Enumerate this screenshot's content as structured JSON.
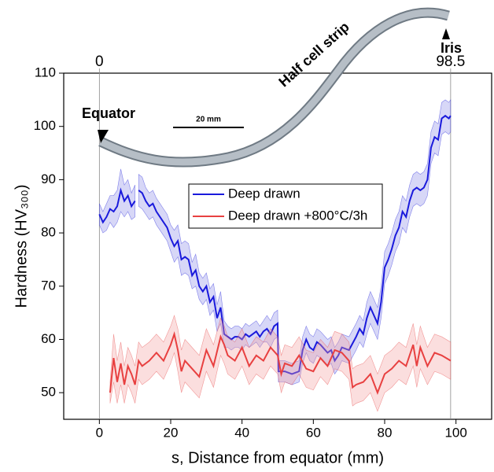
{
  "chart_data": {
    "type": "line",
    "x_label": "s, Distance from equator (mm)",
    "y_label": "Hardness (HV₃₀₀)",
    "xlim": [
      -10,
      110
    ],
    "xticks": [
      0,
      20,
      40,
      60,
      80,
      100
    ],
    "ylim": [
      45,
      110
    ],
    "yticks": [
      50,
      60,
      70,
      80,
      90,
      100,
      110
    ],
    "top_ticks": [
      0,
      98.5
    ],
    "annotations": {
      "equator": "Equator",
      "iris": "Iris",
      "strip": "Half cell strip",
      "scale": "20 mm"
    },
    "series": [
      {
        "name": "Deep drawn",
        "color": "#1a1adc",
        "band_color": "#8c8ce8",
        "x": [
          0,
          1,
          2,
          3,
          4,
          5,
          6,
          7,
          8,
          9,
          10,
          10.5,
          11,
          12,
          13,
          14,
          15,
          16,
          17,
          18,
          19,
          20,
          21,
          22,
          23,
          24,
          25,
          26,
          27,
          28,
          29,
          30,
          31,
          32,
          33,
          34,
          35,
          36,
          37,
          38,
          39,
          40,
          41,
          42,
          43,
          44,
          45,
          46,
          47,
          48,
          49,
          50,
          50.2,
          52,
          54,
          56,
          57,
          58,
          59,
          60,
          61,
          62,
          64,
          65,
          66,
          67,
          68,
          70,
          72,
          73,
          74,
          75,
          76,
          77,
          78,
          79,
          80,
          81,
          82,
          83,
          84,
          85,
          86,
          87,
          88,
          89,
          90,
          91,
          92,
          93,
          94,
          95,
          96,
          97,
          98,
          98.5
        ],
        "values": [
          83.5,
          82,
          83,
          84.5,
          84,
          85,
          88,
          86,
          87,
          85,
          86,
          null,
          88,
          87.5,
          86,
          85,
          85.5,
          84,
          83,
          82,
          81,
          79,
          77.5,
          78.5,
          75,
          75.5,
          75,
          72,
          73,
          70,
          69,
          70,
          67,
          68,
          64,
          66,
          61,
          60.5,
          60,
          60.5,
          60.5,
          60,
          61,
          60.5,
          61,
          61.5,
          60.5,
          61.5,
          62,
          61,
          62.5,
          63,
          54,
          54,
          53.5,
          54,
          58,
          60,
          58.5,
          58,
          59.5,
          59,
          57.5,
          58,
          56,
          57,
          58.5,
          58,
          60.5,
          62,
          61,
          64,
          66,
          64.5,
          63,
          67,
          73.5,
          75,
          77,
          79.5,
          81,
          84,
          83,
          86,
          88,
          88.5,
          88,
          88.5,
          90,
          96,
          98,
          97.5,
          101.5,
          102,
          101.5,
          102
        ],
        "error": [
          2,
          2,
          2.5,
          2.5,
          3,
          3,
          4,
          3,
          3,
          2.5,
          3,
          null,
          3,
          3,
          2.5,
          2.5,
          2.5,
          2.5,
          2.5,
          2.5,
          2.5,
          2.5,
          3,
          3,
          3,
          3,
          3,
          2.5,
          3,
          2.5,
          2.5,
          2.5,
          2.5,
          2.5,
          2.5,
          3,
          2.5,
          2,
          2,
          2,
          2,
          2,
          2,
          2,
          2,
          2,
          2,
          2,
          2.5,
          2.5,
          2.5,
          2.5,
          2,
          2,
          2,
          2,
          2.5,
          2.5,
          2.5,
          2.5,
          2.5,
          2.5,
          2.5,
          2.5,
          2.5,
          2.5,
          2.5,
          2.5,
          2.5,
          2.5,
          2.5,
          3,
          3,
          3,
          3,
          3,
          3,
          3,
          3,
          3,
          3,
          3,
          3,
          3,
          3,
          3,
          3,
          3,
          3,
          3,
          3,
          3,
          3,
          3,
          3,
          3
        ]
      },
      {
        "name": "Deep drawn +800°C/3h",
        "color": "#e84040",
        "band_color": "#f3a0a0",
        "x": [
          3,
          4,
          5,
          6,
          7,
          8,
          9,
          10,
          11,
          12,
          14,
          16,
          18,
          20,
          21,
          22,
          23,
          24,
          26,
          28,
          30,
          32,
          34,
          35,
          36,
          38,
          40,
          42,
          44,
          46,
          48,
          50,
          51,
          52,
          54,
          56,
          58,
          60,
          62,
          64,
          66,
          68,
          70,
          71,
          72,
          74,
          76,
          78,
          80,
          82,
          84,
          86,
          88,
          89,
          90,
          92,
          94,
          96,
          98.5
        ],
        "values": [
          50,
          56.5,
          52,
          55.5,
          51.5,
          55,
          53.5,
          51.5,
          56,
          55,
          56,
          57.5,
          56,
          59,
          61,
          58,
          54,
          56,
          54.5,
          53,
          58,
          55,
          60.5,
          59,
          57,
          56,
          58.5,
          55,
          57,
          56,
          58.5,
          57,
          53.5,
          55.5,
          55,
          57,
          54.5,
          54,
          56.5,
          55,
          58,
          57.5,
          56,
          51,
          51.5,
          52,
          53.5,
          50,
          53.5,
          54.5,
          56,
          55,
          59,
          55,
          58.5,
          55,
          57.5,
          57,
          56
        ],
        "error": [
          2,
          4.5,
          4,
          4,
          3.5,
          3.5,
          3.5,
          3.5,
          3.5,
          3.5,
          3.5,
          3.5,
          3.5,
          3.5,
          3.5,
          4,
          4,
          4,
          4,
          4,
          4,
          4,
          3.5,
          3.5,
          3.5,
          3.5,
          3.5,
          3.5,
          3.5,
          3.5,
          3.5,
          3.5,
          3.5,
          3.5,
          3.5,
          3.5,
          3.5,
          3.5,
          3.5,
          3.5,
          3.5,
          3.5,
          3.5,
          3.5,
          3.5,
          3.5,
          3.5,
          3.5,
          3.5,
          3.5,
          3.5,
          3.5,
          4,
          4,
          4,
          3.5,
          3.5,
          3.5,
          3.5
        ]
      }
    ]
  }
}
